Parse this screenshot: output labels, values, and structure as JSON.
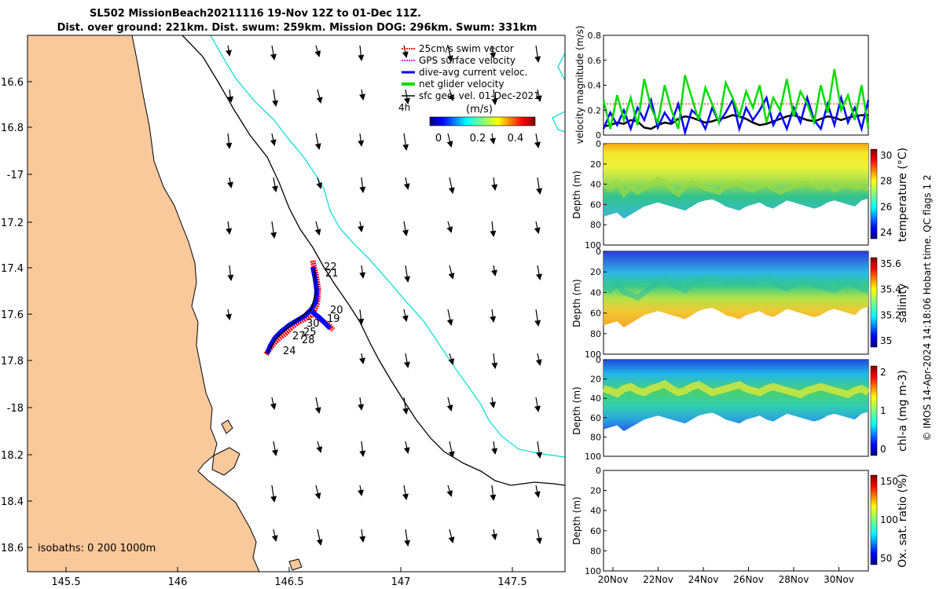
{
  "header": {
    "line1": "SL502 MissionBeach20211116 19-Nov 12Z to 01-Dec 11Z.",
    "line2": "Dist. over ground: 221km. Dist. swum: 259km. Mission DOG: 296km. Swum: 331km"
  },
  "credit": "© IMOS 14-Apr-2024 14:18:06 Hobart time. QC flags 1  2",
  "map": {
    "legend": [
      {
        "label": "25cm/s swim vector",
        "color": "#ff0000"
      },
      {
        "label": "GPS surface velocity",
        "color": "#ff00ff"
      },
      {
        "label": "dive-avg current veloc.",
        "color": "#0000ff"
      },
      {
        "label": "net glider velocity",
        "color": "#00dd00"
      },
      {
        "label": "sfc geo. vel. 01-Dec-2021",
        "color": "#000000"
      }
    ],
    "scale_label": "4h",
    "colorbar_unit": "(m/s)",
    "colorbar_ticks": [
      "0",
      "0.2",
      "0.4"
    ],
    "isobaths_label": "isobaths: 0   200  1000m",
    "lon_ticks": [
      "145.5",
      "146",
      "146.5",
      "147",
      "147.5"
    ],
    "lat_ticks": [
      "16.6",
      "16.8",
      "-17",
      "17.2",
      "17.4",
      "17.6",
      "17.8",
      "-18",
      "18.2",
      "18.4",
      "18.6"
    ],
    "day_labels": [
      "22",
      "21",
      "20",
      "19",
      "30",
      "27",
      "25",
      "28",
      "24"
    ],
    "colors": {
      "land": "#f9c89b",
      "isobath_200": "#000000",
      "isobath_1000": "#22dddd"
    }
  },
  "chart_data": [
    {
      "type": "line",
      "ylabel": "velocity magnitude (m/s)",
      "ylim": [
        0,
        0.8
      ],
      "yticks": [
        "0",
        "0.2",
        "0.4",
        "0.6",
        "0.8"
      ],
      "series": [
        {
          "name": "net glider velocity",
          "color": "#00dd00",
          "values": [
            0.28,
            0.05,
            0.32,
            0.12,
            0.3,
            0.08,
            0.45,
            0.22,
            0.1,
            0.4,
            0.2,
            0.05,
            0.48,
            0.3,
            0.12,
            0.38,
            0.25,
            0.1,
            0.42,
            0.3,
            0.15,
            0.35,
            0.22,
            0.4,
            0.1,
            0.3,
            0.2,
            0.45,
            0.15,
            0.35,
            0.25,
            0.1,
            0.4,
            0.18,
            0.53,
            0.2,
            0.32,
            0.12,
            0.4,
            0.05
          ]
        },
        {
          "name": "dive-avg current veloc.",
          "color": "#0000ff",
          "values": [
            0.05,
            0.18,
            0.08,
            0.2,
            0.05,
            0.22,
            0.12,
            0.28,
            0.06,
            0.18,
            0.1,
            0.25,
            0.02,
            0.2,
            0.15,
            0.05,
            0.22,
            0.1,
            0.18,
            0.28,
            0.05,
            0.22,
            0.12,
            0.2,
            0.3,
            0.08,
            0.18,
            0.05,
            0.22,
            0.1,
            0.3,
            0.12,
            0.05,
            0.25,
            0.08,
            0.3,
            0.1,
            0.22,
            0.05,
            0.28
          ]
        },
        {
          "name": "sfc geo. vel.",
          "color": "#000000",
          "values": [
            0.07,
            0.08,
            0.1,
            0.09,
            0.12,
            0.11,
            0.06,
            0.05,
            0.08,
            0.1,
            0.09,
            0.13,
            0.15,
            0.14,
            0.12,
            0.1,
            0.11,
            0.13,
            0.14,
            0.16,
            0.15,
            0.13,
            0.1,
            0.08,
            0.09,
            0.11,
            0.13,
            0.15,
            0.16,
            0.14,
            0.12,
            0.11,
            0.13,
            0.15,
            0.14,
            0.12,
            0.14,
            0.15,
            0.16,
            0.16
          ]
        },
        {
          "name": "25cm/s swim vector",
          "color": "#ff0000",
          "values": [
            0.25,
            0.25,
            0.25,
            0.25,
            0.25,
            0.25,
            0.25,
            0.25,
            0.25,
            0.25,
            0.25,
            0.25,
            0.25,
            0.25,
            0.25,
            0.25,
            0.25,
            0.25,
            0.25,
            0.25,
            0.25,
            0.25,
            0.25,
            0.25,
            0.25,
            0.25,
            0.25,
            0.25,
            0.25,
            0.25,
            0.25,
            0.25,
            0.25,
            0.25,
            0.25,
            0.25,
            0.25,
            0.25,
            0.25,
            0.25
          ]
        }
      ]
    },
    {
      "type": "heatmap",
      "ylabel": "Depth (m)",
      "yticks": [
        "0",
        "20",
        "40",
        "60",
        "80",
        "100"
      ],
      "colorbar_label": "temperature (°C)",
      "colorbar_ticks": [
        "30",
        "28",
        "26",
        "24"
      ],
      "mixed_layer_depth": [
        40,
        45,
        38,
        50,
        42,
        48,
        44,
        40,
        35,
        38,
        45,
        50,
        42,
        38,
        40,
        44,
        46,
        48,
        42,
        40,
        38,
        44,
        46,
        42,
        40,
        44,
        48,
        45,
        42,
        40,
        38,
        42,
        44,
        40,
        46,
        42,
        40,
        44,
        42,
        45
      ],
      "max_depth": [
        72,
        70,
        68,
        74,
        70,
        66,
        62,
        60,
        58,
        60,
        62,
        64,
        66,
        62,
        58,
        56,
        55,
        58,
        62,
        64,
        66,
        62,
        60,
        58,
        62,
        64,
        60,
        56,
        58,
        60,
        62,
        64,
        62,
        58,
        56,
        58,
        60,
        62,
        56,
        54
      ]
    },
    {
      "type": "heatmap",
      "ylabel": "Depth (m)",
      "yticks": [
        "0",
        "20",
        "40",
        "60",
        "80",
        "100"
      ],
      "colorbar_label": "salinity",
      "colorbar_ticks": [
        "35.6",
        "35.4",
        "35.2",
        "35"
      ],
      "halocline_depth": [
        35,
        38,
        30,
        40,
        42,
        45,
        40,
        35,
        30,
        28,
        32,
        35,
        38,
        30,
        28,
        26,
        25,
        28,
        32,
        30,
        28,
        30,
        32,
        28,
        26,
        30,
        34,
        36,
        32,
        30,
        28,
        32,
        34,
        36,
        38,
        34,
        30,
        32,
        36,
        38
      ]
    },
    {
      "type": "heatmap",
      "ylabel": "Depth (m)",
      "yticks": [
        "0",
        "20",
        "40",
        "60",
        "80",
        "100"
      ],
      "colorbar_label": "chl-a (mg m-3)",
      "colorbar_ticks": [
        "2",
        "1",
        "0"
      ],
      "chl_max_depth": [
        30,
        32,
        35,
        30,
        28,
        32,
        34,
        30,
        28,
        25,
        30,
        34,
        32,
        28,
        26,
        30,
        34,
        32,
        30,
        28,
        26,
        30,
        32,
        34,
        30,
        28,
        30,
        32,
        34,
        36,
        32,
        30,
        28,
        30,
        32,
        34,
        36,
        32,
        30,
        34
      ]
    },
    {
      "type": "heatmap",
      "ylabel": "Depth (m)",
      "yticks": [
        "0",
        "20",
        "40",
        "60",
        "80",
        "100"
      ],
      "colorbar_label": "Ox. sat. ratio (%)",
      "colorbar_ticks": [
        "150",
        "100",
        "50"
      ],
      "xticks": [
        "20Nov",
        "22Nov",
        "24Nov",
        "26Nov",
        "28Nov",
        "30Nov"
      ]
    }
  ]
}
